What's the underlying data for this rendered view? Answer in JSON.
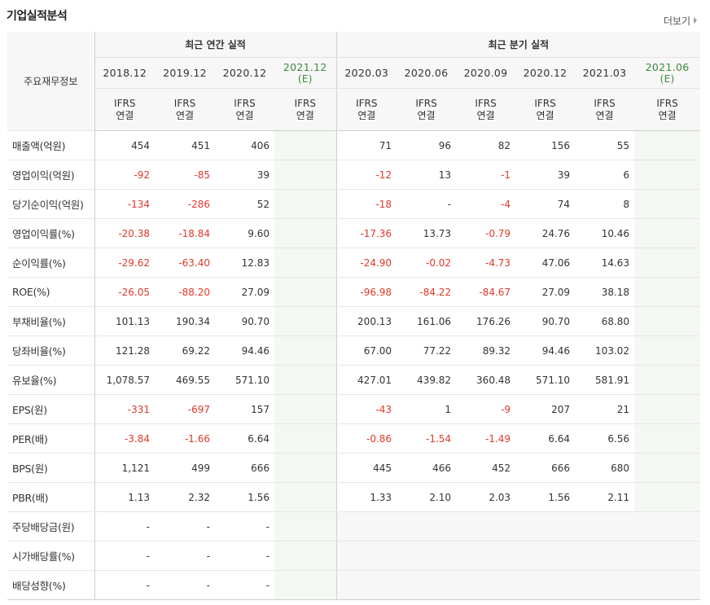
{
  "header": {
    "title": "기업실적분석",
    "more_label": "더보기"
  },
  "table": {
    "corner_label": "주요재무정보",
    "group_annual": "최근 연간 실적",
    "group_quarter": "최근 분기 실적",
    "periods": [
      "2018.12",
      "2019.12",
      "2020.12",
      "2021.12",
      "2020.03",
      "2020.06",
      "2020.09",
      "2020.12",
      "2021.03",
      "2021.06"
    ],
    "estimate_mark": "(E)",
    "basis_top": "IFRS",
    "basis_bottom": "연결",
    "rows": [
      {
        "label": "매출액(억원)",
        "values": [
          "454",
          "451",
          "406",
          "",
          "71",
          "96",
          "82",
          "156",
          "55",
          ""
        ]
      },
      {
        "label": "영업이익(억원)",
        "values": [
          "-92",
          "-85",
          "39",
          "",
          "-12",
          "13",
          "-1",
          "39",
          "6",
          ""
        ]
      },
      {
        "label": "당기순이익(억원)",
        "values": [
          "-134",
          "-286",
          "52",
          "",
          "-18",
          "-",
          "-4",
          "74",
          "8",
          ""
        ]
      },
      {
        "label": "영업이익률(%)",
        "values": [
          "-20.38",
          "-18.84",
          "9.60",
          "",
          "-17.36",
          "13.73",
          "-0.79",
          "24.76",
          "10.46",
          ""
        ]
      },
      {
        "label": "순이익률(%)",
        "values": [
          "-29.62",
          "-63.40",
          "12.83",
          "",
          "-24.90",
          "-0.02",
          "-4.73",
          "47.06",
          "14.63",
          ""
        ]
      },
      {
        "label": "ROE(%)",
        "values": [
          "-26.05",
          "-88.20",
          "27.09",
          "",
          "-96.98",
          "-84.22",
          "-84.67",
          "27.09",
          "38.18",
          ""
        ]
      },
      {
        "label": "부채비율(%)",
        "values": [
          "101.13",
          "190.34",
          "90.70",
          "",
          "200.13",
          "161.06",
          "176.26",
          "90.70",
          "68.80",
          ""
        ]
      },
      {
        "label": "당좌비율(%)",
        "values": [
          "121.28",
          "69.22",
          "94.46",
          "",
          "67.00",
          "77.22",
          "89.32",
          "94.46",
          "103.02",
          ""
        ]
      },
      {
        "label": "유보율(%)",
        "values": [
          "1,078.57",
          "469.55",
          "571.10",
          "",
          "427.01",
          "439.82",
          "360.48",
          "571.10",
          "581.91",
          ""
        ]
      },
      {
        "label": "EPS(원)",
        "values": [
          "-331",
          "-697",
          "157",
          "",
          "-43",
          "1",
          "-9",
          "207",
          "21",
          ""
        ]
      },
      {
        "label": "PER(배)",
        "values": [
          "-3.84",
          "-1.66",
          "6.64",
          "",
          "-0.86",
          "-1.54",
          "-1.49",
          "6.64",
          "6.56",
          ""
        ]
      },
      {
        "label": "BPS(원)",
        "values": [
          "1,121",
          "499",
          "666",
          "",
          "445",
          "466",
          "452",
          "666",
          "680",
          ""
        ]
      },
      {
        "label": "PBR(배)",
        "values": [
          "1.13",
          "2.32",
          "1.56",
          "",
          "1.33",
          "2.10",
          "2.03",
          "1.56",
          "2.11",
          ""
        ]
      },
      {
        "label": "주당배당금(원)",
        "values": [
          "-",
          "-",
          "-",
          "",
          "",
          "",
          "",
          "",
          "",
          ""
        ]
      },
      {
        "label": "시가배당률(%)",
        "values": [
          "-",
          "-",
          "-",
          "",
          "",
          "",
          "",
          "",
          "",
          ""
        ]
      },
      {
        "label": "배당성향(%)",
        "values": [
          "-",
          "-",
          "-",
          "",
          "",
          "",
          "",
          "",
          "",
          ""
        ]
      }
    ],
    "colors": {
      "negative": "#e0392b",
      "basis": "#e0523a",
      "estimate": "#3c8c3c"
    }
  }
}
